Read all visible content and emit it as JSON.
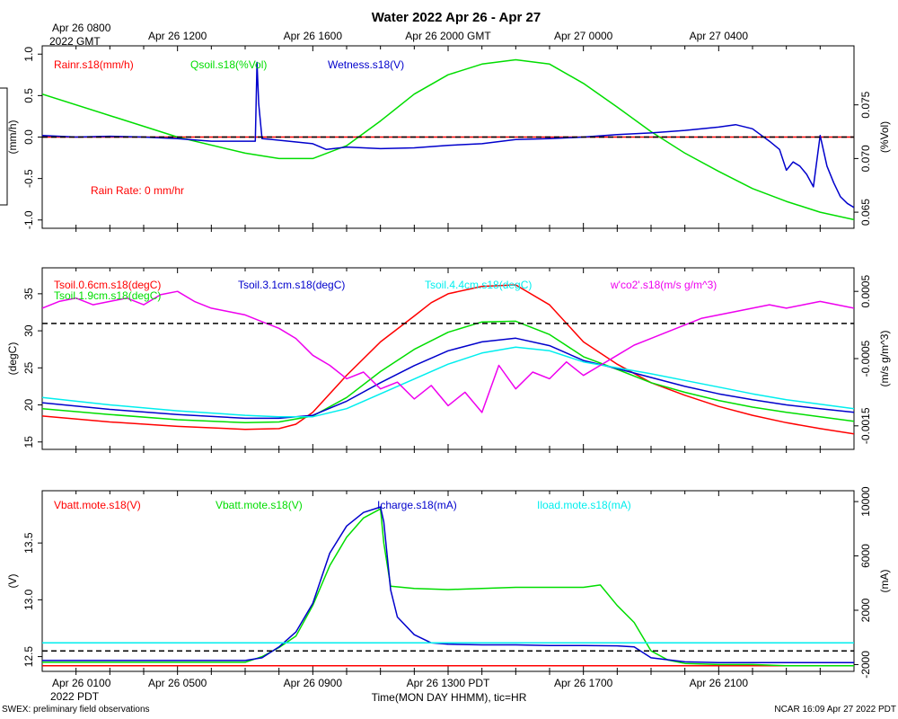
{
  "title": "Water 2022 Apr 26 - Apr 27",
  "top_axis": {
    "corner_line1": "Apr 26 0800",
    "corner_line2": "2022 GMT",
    "ticks": [
      {
        "h": 4,
        "label": "Apr 26 1200"
      },
      {
        "h": 8,
        "label": "Apr 26 1600"
      },
      {
        "h": 12,
        "label": "Apr 26 2000 GMT"
      },
      {
        "h": 16,
        "label": "Apr 27 0000"
      },
      {
        "h": 20,
        "label": "Apr 27 0400"
      }
    ]
  },
  "bottom_axis": {
    "corner_line1": "Apr 26 0100",
    "corner_line2": "2022 PDT",
    "ticks": [
      {
        "h": 4,
        "label": "Apr 26 0500"
      },
      {
        "h": 8,
        "label": "Apr 26 0900"
      },
      {
        "h": 12,
        "label": "Apr 26 1300 PDT"
      },
      {
        "h": 16,
        "label": "Apr 26 1700"
      },
      {
        "h": 20,
        "label": "Apr 26 2100"
      }
    ],
    "xlabel": "Time(MON DAY HHMM), tic=HR"
  },
  "footer": {
    "left": "SWEX: preliminary field observations",
    "right": "NCAR 16:09 Apr 27 2022 PDT"
  },
  "chart_data": [
    {
      "type": "line",
      "panel": "rain-wetness-qsoil",
      "x_unit": "hours since Apr 26 0100 PDT",
      "xlim": [
        0,
        24
      ],
      "ylim": [
        -1.1,
        1.1
      ],
      "ylim_right": [
        0.0635,
        0.0805
      ],
      "yticks": [
        -1.0,
        -0.5,
        0.0,
        0.5,
        1.0
      ],
      "ytick_labels": [
        "-1.0",
        "-0.5",
        "0.0",
        "0.5",
        "1.0"
      ],
      "yticks_right": [
        0.065,
        0.07,
        0.075
      ],
      "ytick_labels_right": [
        "0.065",
        "0.070",
        "0.075"
      ],
      "ylabel": "(mm/h)",
      "ylabel_right": "(%Vol)",
      "reference_line": 0.0,
      "annotation": "Rain Rate: 0 mm/hr",
      "series": [
        {
          "name": "Rainr.s18(mm/h)",
          "color": "#ff0000",
          "axis": "left",
          "x": [
            0,
            24
          ],
          "y": [
            0.0,
            0.0
          ]
        },
        {
          "name": "Qsoil.s18(%Vol)",
          "color": "#00dd00",
          "axis": "right",
          "x": [
            0,
            2,
            4,
            6,
            7,
            8,
            9,
            10,
            11,
            12,
            13,
            14,
            15,
            16,
            17,
            18,
            19,
            20,
            21,
            22,
            23,
            24
          ],
          "y": [
            0.076,
            0.074,
            0.072,
            0.0705,
            0.07,
            0.07,
            0.0712,
            0.0735,
            0.076,
            0.0778,
            0.0788,
            0.0792,
            0.0788,
            0.077,
            0.0748,
            0.0725,
            0.0705,
            0.0688,
            0.0672,
            0.066,
            0.065,
            0.0643
          ]
        },
        {
          "name": "Wetness.s18(V)",
          "color": "#0000cc",
          "axis": "left",
          "x": [
            0,
            1,
            2,
            3,
            4,
            5,
            6.3,
            6.35,
            6.4,
            6.5,
            6.8,
            8,
            8.4,
            9,
            10,
            11,
            12,
            13,
            14,
            15,
            16,
            17,
            18,
            19,
            20,
            20.5,
            21,
            21.5,
            21.8,
            22,
            22.2,
            22.4,
            22.6,
            22.8,
            23,
            23.2,
            23.4,
            23.6,
            23.8,
            24
          ],
          "y": [
            0.02,
            0.0,
            0.01,
            0.0,
            -0.02,
            -0.05,
            -0.05,
            0.9,
            0.4,
            -0.02,
            -0.03,
            -0.08,
            -0.15,
            -0.12,
            -0.14,
            -0.13,
            -0.1,
            -0.08,
            -0.03,
            -0.02,
            0.0,
            0.03,
            0.05,
            0.08,
            0.12,
            0.15,
            0.1,
            -0.05,
            -0.15,
            -0.4,
            -0.3,
            -0.35,
            -0.45,
            -0.6,
            0.02,
            -0.35,
            -0.55,
            -0.72,
            -0.8,
            -0.85
          ]
        }
      ]
    },
    {
      "type": "line",
      "panel": "soil-temperature-co2-flux",
      "x_unit": "hours since Apr 26 0100 PDT",
      "xlim": [
        0,
        24
      ],
      "ylim": [
        14,
        38.5
      ],
      "ylim_right": [
        -0.00185,
        0.00085
      ],
      "yticks": [
        15,
        20,
        25,
        30,
        35
      ],
      "ytick_labels": [
        "15",
        "20",
        "25",
        "30",
        "35"
      ],
      "yticks_right": [
        -0.0015,
        -0.0005,
        0.0005
      ],
      "ytick_labels_right": [
        "-0.0015",
        "-0.0005",
        "0.0005"
      ],
      "ylabel": "(degC)",
      "ylabel_right": "(m/s g/m^3)",
      "reference_line": 31.0,
      "series": [
        {
          "name": "Tsoil.0.6cm.s18(degC)",
          "color": "#ff0000",
          "axis": "left",
          "x": [
            0,
            2,
            4,
            6,
            7,
            7.5,
            8,
            9,
            10,
            11,
            11.5,
            12,
            13,
            14,
            15,
            16,
            17,
            18,
            19,
            20,
            21,
            22,
            23,
            24
          ],
          "y": [
            18.5,
            17.7,
            17.1,
            16.7,
            16.8,
            17.4,
            19.0,
            24.0,
            28.5,
            32.0,
            33.8,
            35.0,
            36.0,
            36.2,
            33.5,
            28.5,
            25.5,
            23.0,
            21.3,
            19.8,
            18.6,
            17.6,
            16.8,
            16.1
          ]
        },
        {
          "name": "Tsoil.1.9cm.s18(degC)",
          "color": "#00dd00",
          "axis": "left",
          "x": [
            0,
            2,
            4,
            6,
            7,
            8,
            9,
            10,
            11,
            12,
            13,
            14,
            15,
            16,
            17,
            18,
            19,
            20,
            21,
            22,
            23,
            24
          ],
          "y": [
            19.5,
            18.7,
            18.0,
            17.6,
            17.7,
            18.5,
            21.0,
            24.5,
            27.5,
            29.8,
            31.2,
            31.3,
            29.5,
            26.5,
            24.8,
            23.0,
            21.7,
            20.6,
            19.7,
            19.0,
            18.4,
            17.8
          ]
        },
        {
          "name": "Tsoil.3.1cm.s18(degC)",
          "color": "#0000cc",
          "axis": "left",
          "x": [
            0,
            2,
            4,
            6,
            7,
            8,
            9,
            10,
            11,
            12,
            13,
            14,
            15,
            16,
            17,
            18,
            19,
            20,
            21,
            22,
            23,
            24
          ],
          "y": [
            20.3,
            19.4,
            18.7,
            18.2,
            18.2,
            18.6,
            20.5,
            23.0,
            25.3,
            27.3,
            28.5,
            29.0,
            28.0,
            26.0,
            24.9,
            23.7,
            22.5,
            21.5,
            20.7,
            20.0,
            19.5,
            19.0
          ]
        },
        {
          "name": "Tsoil.4.4cm.s18(degC)",
          "color": "#00eeee",
          "axis": "left",
          "x": [
            0,
            2,
            4,
            6,
            7,
            8,
            9,
            10,
            11,
            12,
            13,
            14,
            15,
            16,
            17,
            18,
            19,
            20,
            21,
            22,
            23,
            24
          ],
          "y": [
            21.0,
            20.0,
            19.2,
            18.6,
            18.4,
            18.4,
            19.5,
            21.5,
            23.5,
            25.5,
            27.0,
            27.8,
            27.3,
            25.8,
            25.0,
            24.2,
            23.3,
            22.4,
            21.5,
            20.7,
            20.1,
            19.5
          ]
        },
        {
          "name": "w'co2'.s18(m/s g/m^3)",
          "color": "#ee00ee",
          "axis": "right",
          "x": [
            0,
            0.5,
            1,
            1.5,
            2,
            2.5,
            3,
            3.5,
            4,
            4.5,
            5,
            5.5,
            6,
            6.5,
            7,
            7.5,
            8,
            8.5,
            9,
            9.5,
            10,
            10.5,
            11,
            11.5,
            12,
            12.5,
            13,
            13.5,
            14,
            14.5,
            15,
            15.5,
            16,
            16.5,
            17,
            17.5,
            18,
            18.5,
            19,
            19.5,
            20,
            20.5,
            21,
            21.5,
            22,
            22.5,
            23,
            23.5,
            24
          ],
          "y": [
            0.00025,
            0.00035,
            0.0004,
            0.0003,
            0.00035,
            0.0004,
            0.0003,
            0.00045,
            0.0005,
            0.00035,
            0.00025,
            0.0002,
            0.00015,
            5e-05,
            -5e-05,
            -0.0002,
            -0.00045,
            -0.0006,
            -0.0008,
            -0.0007,
            -0.00095,
            -0.00085,
            -0.0011,
            -0.0009,
            -0.0012,
            -0.001,
            -0.0013,
            -0.0006,
            -0.00095,
            -0.0007,
            -0.0008,
            -0.00055,
            -0.00075,
            -0.0006,
            -0.00045,
            -0.0003,
            -0.0002,
            -0.0001,
            0.0,
            0.0001,
            0.00015,
            0.0002,
            0.00025,
            0.0003,
            0.00025,
            0.0003,
            0.00035,
            0.0003,
            0.00025
          ]
        }
      ]
    },
    {
      "type": "line",
      "panel": "battery-charge-load",
      "x_unit": "hours since Apr 26 0100 PDT",
      "xlim": [
        0,
        24
      ],
      "ylim": [
        12.37,
        13.96
      ],
      "ylim_right": [
        -2500,
        10800
      ],
      "yticks": [
        12.5,
        13.0,
        13.5
      ],
      "ytick_labels": [
        "12.5",
        "13.0",
        "13.5"
      ],
      "yticks_right": [
        -2000,
        2000,
        6000,
        10000
      ],
      "ytick_labels_right": [
        "-2000",
        "2000",
        "6000",
        "10000"
      ],
      "ylabel": "(V)",
      "ylabel_right": "(mA)",
      "reference_line": 12.55,
      "series": [
        {
          "name": "Vbatt.mote.s18(V)",
          "color": "#ff0000",
          "axis": "left",
          "x": [
            0,
            24
          ],
          "y": [
            12.42,
            12.42
          ]
        },
        {
          "name": "Vbatt.mote.s18(V)",
          "color": "#00dd00",
          "axis": "left",
          "x": [
            0,
            1,
            2,
            3,
            4,
            5,
            6,
            6.5,
            7,
            7.5,
            8,
            8.5,
            9,
            9.5,
            10,
            10.1,
            10.3,
            11,
            12,
            13,
            14,
            15,
            16,
            16.5,
            17,
            17.5,
            18,
            18.5,
            19,
            20,
            21,
            22,
            23,
            24
          ],
          "y": [
            12.45,
            12.45,
            12.45,
            12.45,
            12.45,
            12.45,
            12.45,
            12.5,
            12.58,
            12.68,
            12.95,
            13.3,
            13.55,
            13.72,
            13.8,
            13.5,
            13.12,
            13.1,
            13.09,
            13.1,
            13.11,
            13.11,
            13.11,
            13.13,
            12.95,
            12.8,
            12.55,
            12.47,
            12.44,
            12.43,
            12.43,
            12.42,
            12.42,
            12.42
          ]
        },
        {
          "name": "Icharge.s18(mA)",
          "color": "#0000cc",
          "axis": "right",
          "x": [
            0,
            6,
            6.5,
            7,
            7.5,
            8,
            8.5,
            9,
            9.5,
            10,
            10.1,
            10.3,
            10.5,
            11,
            11.5,
            12,
            13,
            14,
            15,
            16,
            17,
            17.5,
            18,
            19,
            20,
            21,
            22,
            23,
            24
          ],
          "y": [
            -1700,
            -1700,
            -1500,
            -700,
            400,
            2500,
            6200,
            8200,
            9200,
            9600,
            8500,
            3500,
            1500,
            200,
            -400,
            -500,
            -550,
            -550,
            -600,
            -600,
            -620,
            -700,
            -1500,
            -1800,
            -1850,
            -1850,
            -1850,
            -1850,
            -1850
          ]
        },
        {
          "name": "Iload.mote.s18(mA)",
          "color": "#00eeee",
          "axis": "right",
          "x": [
            0,
            24
          ],
          "y": [
            -400,
            -400
          ]
        }
      ]
    }
  ]
}
